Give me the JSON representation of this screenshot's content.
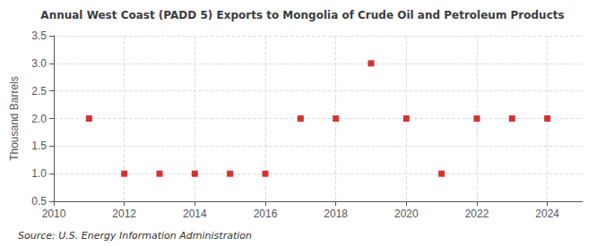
{
  "chart_data": {
    "type": "scatter",
    "title": "Annual West Coast (PADD 5) Exports to Mongolia of Crude Oil and Petroleum Products",
    "y_label": "Thousand Barrels",
    "annotations": [
      "Source: U.S. Energy Information Administration"
    ],
    "x": [
      2011,
      2012,
      2013,
      2014,
      2015,
      2016,
      2017,
      2018,
      2019,
      2020,
      2021,
      2022,
      2023,
      2024
    ],
    "values": [
      2,
      1,
      1,
      1,
      1,
      1,
      2,
      2,
      3,
      2,
      1,
      2,
      2,
      2
    ],
    "color": "#cc0000",
    "marker": "square",
    "xlim": [
      2010,
      2025
    ],
    "xticks": [
      2010,
      2012,
      2014,
      2016,
      2018,
      2020,
      2022,
      2024
    ],
    "ylim": [
      0.5,
      3.5
    ],
    "yticks": [
      0.5,
      {
        "value": 1.0,
        "label": "1.0"
      },
      1.5,
      {
        "value": 2.0,
        "label": "2.0"
      },
      2.5,
      {
        "value": 3.0,
        "label": "3.0"
      },
      3.5
    ],
    "grid": true
  }
}
